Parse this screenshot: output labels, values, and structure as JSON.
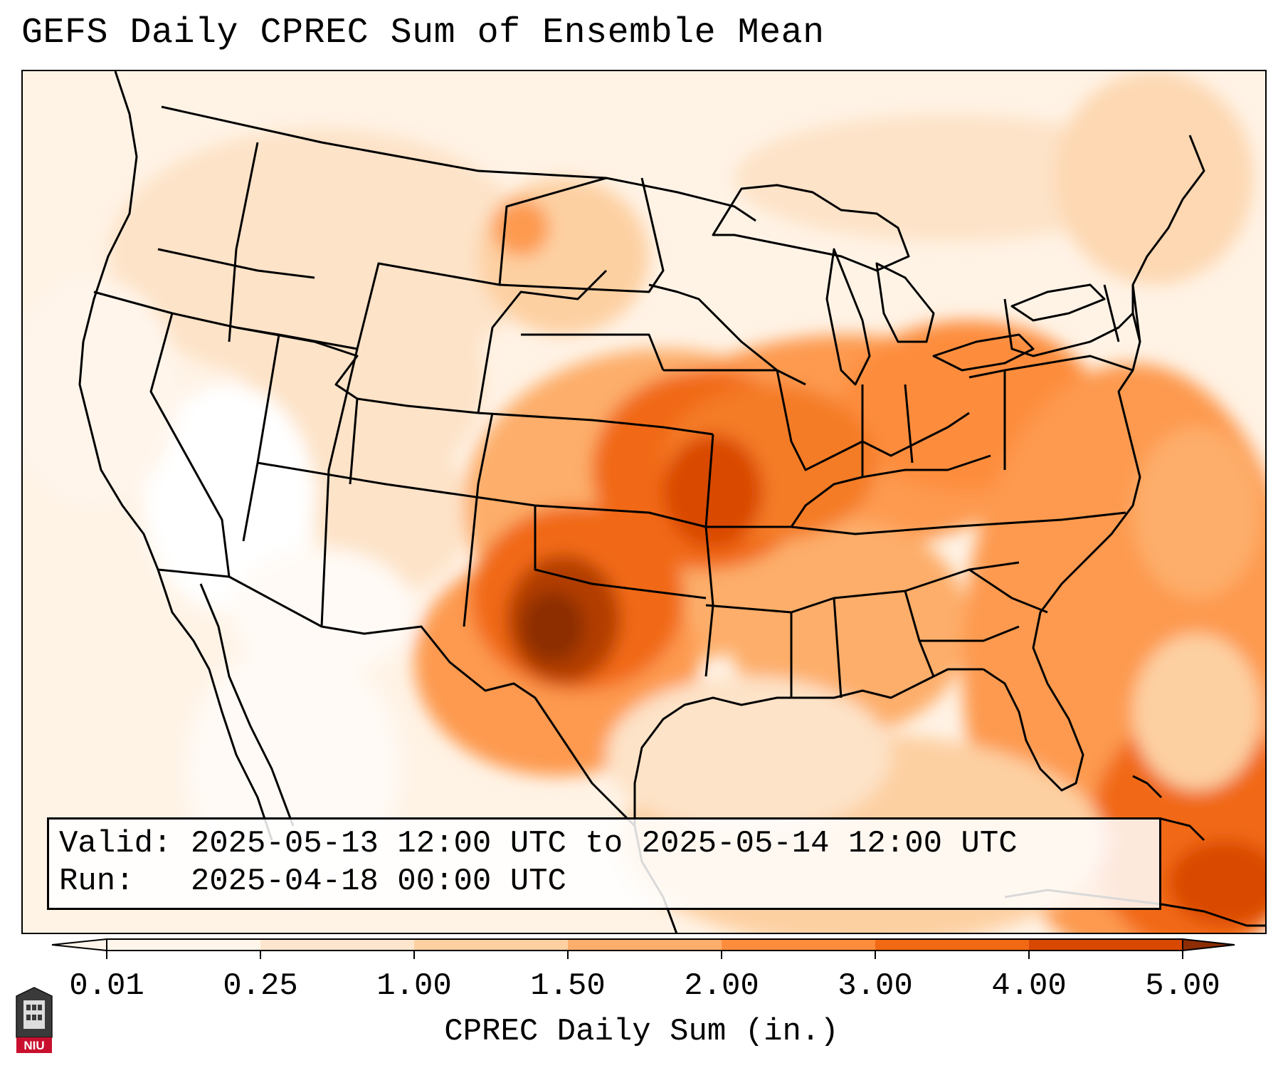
{
  "title": "GEFS Daily CPREC Sum of Ensemble Mean",
  "info": {
    "valid_label": "Valid:",
    "valid_value": "2025-05-13 12:00 UTC to 2025-05-14 12:00 UTC",
    "run_label": "Run:",
    "run_value": "2025-04-18 00:00 UTC"
  },
  "colorbar": {
    "label": "CPREC Daily Sum (in.)",
    "ticks": [
      "0.01",
      "0.25",
      "1.00",
      "1.50",
      "2.00",
      "3.00",
      "4.00",
      "5.00"
    ],
    "colors": [
      "#fff5eb",
      "#fee6ce",
      "#fdd0a2",
      "#fdae6b",
      "#fd8d3c",
      "#f16913",
      "#d94801",
      "#8c2d04"
    ]
  },
  "logo": {
    "text": "NIU",
    "name": "niu-logo"
  }
}
